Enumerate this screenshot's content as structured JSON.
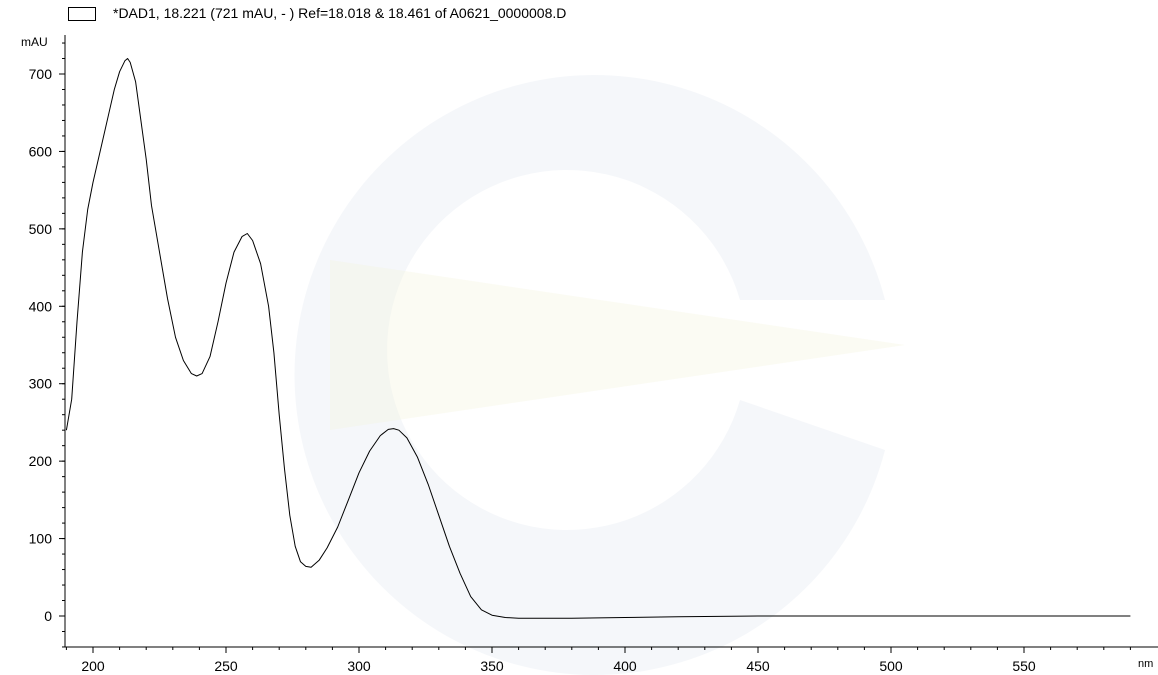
{
  "chart_data": {
    "type": "line",
    "title": "",
    "legend": {
      "entries": [
        "*DAD1, 18.221 (721 mAU, - ) Ref=18.018 & 18.461 of A0621_0000008.D"
      ],
      "placement": "top-left"
    },
    "xlabel": "nm",
    "ylabel": "mAU",
    "xlim": [
      190,
      590
    ],
    "ylim": [
      -40,
      750
    ],
    "xticks": [
      200,
      250,
      300,
      350,
      400,
      450,
      500,
      550
    ],
    "yticks": [
      0,
      100,
      200,
      300,
      400,
      500,
      600,
      700
    ],
    "grid": false,
    "series": [
      {
        "name": "*DAD1, 18.221 (721 mAU, - ) Ref=18.018 & 18.461 of A0621_0000008.D",
        "color": "#000000",
        "points": [
          [
            190,
            240
          ],
          [
            192,
            280
          ],
          [
            194,
            380
          ],
          [
            196,
            470
          ],
          [
            198,
            525
          ],
          [
            200,
            560
          ],
          [
            203,
            605
          ],
          [
            206,
            650
          ],
          [
            208,
            680
          ],
          [
            210,
            703
          ],
          [
            212,
            717
          ],
          [
            213,
            720
          ],
          [
            214,
            715
          ],
          [
            216,
            690
          ],
          [
            218,
            640
          ],
          [
            220,
            590
          ],
          [
            222,
            530
          ],
          [
            225,
            470
          ],
          [
            228,
            410
          ],
          [
            231,
            360
          ],
          [
            234,
            330
          ],
          [
            237,
            313
          ],
          [
            239,
            310
          ],
          [
            241,
            313
          ],
          [
            244,
            335
          ],
          [
            247,
            380
          ],
          [
            250,
            430
          ],
          [
            253,
            470
          ],
          [
            256,
            490
          ],
          [
            258,
            494
          ],
          [
            260,
            485
          ],
          [
            263,
            455
          ],
          [
            266,
            400
          ],
          [
            268,
            340
          ],
          [
            270,
            260
          ],
          [
            272,
            190
          ],
          [
            274,
            130
          ],
          [
            276,
            90
          ],
          [
            278,
            70
          ],
          [
            280,
            64
          ],
          [
            282,
            63
          ],
          [
            285,
            72
          ],
          [
            288,
            88
          ],
          [
            292,
            115
          ],
          [
            296,
            150
          ],
          [
            300,
            185
          ],
          [
            304,
            213
          ],
          [
            308,
            233
          ],
          [
            311,
            241
          ],
          [
            313,
            242
          ],
          [
            315,
            240
          ],
          [
            318,
            230
          ],
          [
            322,
            205
          ],
          [
            326,
            170
          ],
          [
            330,
            130
          ],
          [
            334,
            90
          ],
          [
            338,
            55
          ],
          [
            342,
            25
          ],
          [
            346,
            8
          ],
          [
            350,
            1
          ],
          [
            355,
            -2
          ],
          [
            360,
            -3
          ],
          [
            370,
            -3
          ],
          [
            380,
            -3
          ],
          [
            400,
            -2
          ],
          [
            420,
            -1
          ],
          [
            450,
            0
          ],
          [
            500,
            0
          ],
          [
            550,
            0
          ],
          [
            590,
            0
          ]
        ]
      }
    ]
  }
}
